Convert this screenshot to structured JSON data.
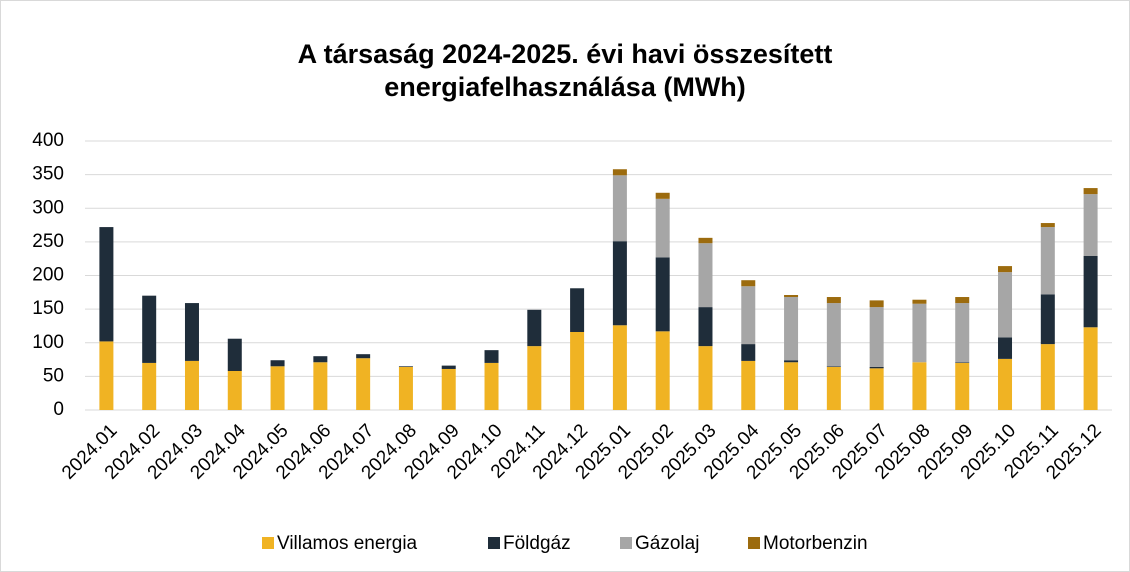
{
  "chart_data": {
    "type": "stacked_bar",
    "title": "A társaság 2024-2025. évi havi összesített energiafelhasználása (MWh)",
    "categories": [
      "2024.01",
      "2024.02",
      "2024.03",
      "2024.04",
      "2024.05",
      "2024.06",
      "2024.07",
      "2024.08",
      "2024.09",
      "2024.10",
      "2024.11",
      "2024.12",
      "2025.01",
      "2025.02",
      "2025.03",
      "2025.04",
      "2025.05",
      "2025.06",
      "2025.07",
      "2025.08",
      "2025.09",
      "2025.10",
      "2025.11",
      "2025.12"
    ],
    "series": [
      {
        "name": "Villamos energia",
        "color": "#f0b323",
        "values": [
          102,
          70,
          73,
          58,
          65,
          71,
          77,
          64,
          61,
          70,
          95,
          116,
          126,
          117,
          95,
          73,
          71,
          64,
          62,
          71,
          70,
          76,
          98,
          123
        ]
      },
      {
        "name": "Földgáz",
        "color": "#1f2d3a",
        "values": [
          170,
          100,
          86,
          48,
          9,
          9,
          6,
          1,
          5,
          19,
          54,
          65,
          125,
          110,
          58,
          25,
          3,
          1,
          2,
          0,
          1,
          32,
          74,
          106
        ]
      },
      {
        "name": "Gázolaj",
        "color": "#a6a6a6",
        "values": [
          0,
          0,
          0,
          0,
          0,
          0,
          0,
          0,
          0,
          0,
          0,
          0,
          98,
          87,
          95,
          86,
          94,
          94,
          89,
          87,
          88,
          97,
          100,
          92
        ]
      },
      {
        "name": "Motorbenzin",
        "color": "#9c6b0e",
        "values": [
          0,
          0,
          0,
          0,
          0,
          0,
          0,
          0,
          0,
          0,
          0,
          0,
          9,
          9,
          8,
          9,
          3,
          9,
          10,
          6,
          9,
          9,
          6,
          9
        ]
      }
    ],
    "ylim": [
      0,
      400
    ],
    "yticks": [
      0,
      50,
      100,
      150,
      200,
      250,
      300,
      350,
      400
    ],
    "grid": true,
    "legend": "bottom"
  }
}
